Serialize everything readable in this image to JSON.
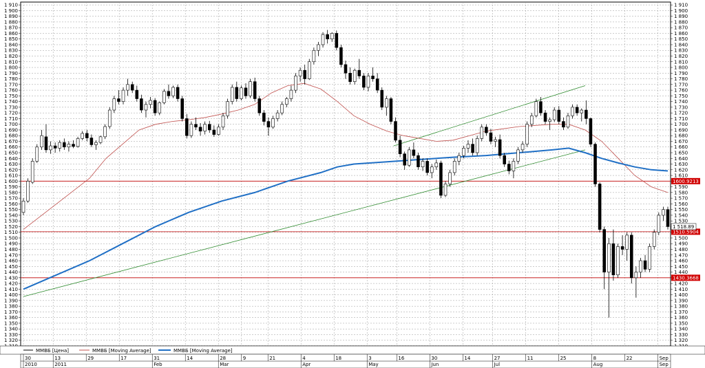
{
  "chart_data": {
    "type": "candlestick",
    "y_range": [
      1310,
      1915
    ],
    "y_ticks": [
      1310,
      1320,
      1330,
      1340,
      1350,
      1360,
      1370,
      1380,
      1390,
      1400,
      1410,
      1420,
      1430,
      1440,
      1450,
      1460,
      1470,
      1480,
      1490,
      1500,
      1510,
      1520,
      1530,
      1540,
      1550,
      1560,
      1570,
      1580,
      1590,
      1600,
      1610,
      1620,
      1630,
      1640,
      1650,
      1660,
      1670,
      1680,
      1690,
      1700,
      1710,
      1720,
      1730,
      1740,
      1750,
      1760,
      1770,
      1780,
      1790,
      1800,
      1810,
      1820,
      1830,
      1840,
      1850,
      1860,
      1870,
      1880,
      1890,
      1900,
      1910
    ],
    "y_tick_labels": [
      "1 310",
      "1 320",
      "1 330",
      "1 340",
      "1 350",
      "1 360",
      "1 370",
      "1 380",
      "1 390",
      "1 400",
      "1 410",
      "1 420",
      "1 430",
      "1 440",
      "1 450",
      "1 460",
      "1 470",
      "1 480",
      "1 490",
      "1 500",
      "1 510",
      "1 520",
      "1 530",
      "1 540",
      "1 550",
      "1 560",
      "1 570",
      "1 580",
      "1 590",
      "1 600",
      "1 610",
      "1 620",
      "1 630",
      "1 640",
      "1 650",
      "1 660",
      "1 670",
      "1 680",
      "1 690",
      "1 700",
      "1 710",
      "1 720",
      "1 730",
      "1 740",
      "1 750",
      "1 760",
      "1 770",
      "1 780",
      "1 790",
      "1 800",
      "1 810",
      "1 820",
      "1 830",
      "1 840",
      "1 850",
      "1 860",
      "1 870",
      "1 880",
      "1 890",
      "1 900",
      "1 910"
    ],
    "x_ticks": [
      {
        "label": "30",
        "x": 0
      },
      {
        "label": "13",
        "x": 9
      },
      {
        "label": "29",
        "x": 19
      },
      {
        "label": "17",
        "x": 29
      },
      {
        "label": "31",
        "x": 39
      },
      {
        "label": "14",
        "x": 49
      },
      {
        "label": "28",
        "x": 59
      },
      {
        "label": "9",
        "x": 66
      },
      {
        "label": "21",
        "x": 74
      },
      {
        "label": "4",
        "x": 84
      },
      {
        "label": "18",
        "x": 94
      },
      {
        "label": "3",
        "x": 104
      },
      {
        "label": "16",
        "x": 113
      },
      {
        "label": "30",
        "x": 123
      },
      {
        "label": "14",
        "x": 133
      },
      {
        "label": "27",
        "x": 142
      },
      {
        "label": "11",
        "x": 152
      },
      {
        "label": "25",
        "x": 162
      },
      {
        "label": "8",
        "x": 172
      },
      {
        "label": "22",
        "x": 182
      },
      {
        "label": "Sep",
        "x": 192
      }
    ],
    "month_labels": [
      {
        "label": "2010",
        "x": 0
      },
      {
        "label": "2011",
        "x": 9
      },
      {
        "label": "Feb",
        "x": 39
      },
      {
        "label": "Mar",
        "x": 59
      },
      {
        "label": "Apr",
        "x": 84
      },
      {
        "label": "May",
        "x": 104
      },
      {
        "label": "Jun",
        "x": 123
      },
      {
        "label": "Jul",
        "x": 142
      },
      {
        "label": "Aug",
        "x": 172
      },
      {
        "label": "Sep",
        "x": 192
      }
    ],
    "x_range": [
      0,
      195
    ],
    "candles_ohlc": [
      [
        1545,
        1570,
        1540,
        1565
      ],
      [
        1565,
        1605,
        1562,
        1600
      ],
      [
        1598,
        1640,
        1595,
        1635
      ],
      [
        1635,
        1665,
        1632,
        1660
      ],
      [
        1660,
        1690,
        1655,
        1680
      ],
      [
        1678,
        1700,
        1650,
        1655
      ],
      [
        1655,
        1670,
        1648,
        1662
      ],
      [
        1662,
        1668,
        1650,
        1658
      ],
      [
        1658,
        1672,
        1652,
        1668
      ],
      [
        1668,
        1675,
        1655,
        1660
      ],
      [
        1660,
        1670,
        1652,
        1665
      ],
      [
        1665,
        1672,
        1658,
        1661
      ],
      [
        1661,
        1678,
        1659,
        1675
      ],
      [
        1675,
        1688,
        1672,
        1684
      ],
      [
        1684,
        1690,
        1670,
        1676
      ],
      [
        1676,
        1682,
        1660,
        1664
      ],
      [
        1664,
        1672,
        1655,
        1668
      ],
      [
        1668,
        1680,
        1665,
        1678
      ],
      [
        1678,
        1700,
        1674,
        1696
      ],
      [
        1696,
        1730,
        1692,
        1725
      ],
      [
        1725,
        1750,
        1720,
        1745
      ],
      [
        1745,
        1760,
        1735,
        1740
      ],
      [
        1740,
        1765,
        1735,
        1760
      ],
      [
        1760,
        1780,
        1750,
        1770
      ],
      [
        1770,
        1775,
        1755,
        1760
      ],
      [
        1760,
        1768,
        1740,
        1745
      ],
      [
        1745,
        1752,
        1720,
        1725
      ],
      [
        1725,
        1740,
        1712,
        1735
      ],
      [
        1735,
        1748,
        1728,
        1742
      ],
      [
        1742,
        1746,
        1715,
        1720
      ],
      [
        1720,
        1740,
        1716,
        1738
      ],
      [
        1738,
        1762,
        1735,
        1758
      ],
      [
        1758,
        1770,
        1745,
        1750
      ],
      [
        1750,
        1768,
        1746,
        1765
      ],
      [
        1765,
        1770,
        1740,
        1745
      ],
      [
        1745,
        1750,
        1705,
        1710
      ],
      [
        1710,
        1718,
        1675,
        1680
      ],
      [
        1680,
        1705,
        1676,
        1700
      ],
      [
        1700,
        1712,
        1690,
        1695
      ],
      [
        1695,
        1702,
        1680,
        1688
      ],
      [
        1688,
        1705,
        1682,
        1700
      ],
      [
        1700,
        1706,
        1685,
        1690
      ],
      [
        1690,
        1698,
        1678,
        1682
      ],
      [
        1682,
        1700,
        1680,
        1695
      ],
      [
        1695,
        1720,
        1690,
        1715
      ],
      [
        1715,
        1745,
        1710,
        1740
      ],
      [
        1740,
        1770,
        1735,
        1765
      ],
      [
        1765,
        1775,
        1740,
        1745
      ],
      [
        1745,
        1768,
        1742,
        1764
      ],
      [
        1764,
        1772,
        1745,
        1750
      ],
      [
        1750,
        1780,
        1746,
        1775
      ],
      [
        1775,
        1782,
        1740,
        1745
      ],
      [
        1745,
        1750,
        1715,
        1720
      ],
      [
        1720,
        1725,
        1698,
        1705
      ],
      [
        1705,
        1712,
        1680,
        1695
      ],
      [
        1695,
        1715,
        1692,
        1710
      ],
      [
        1710,
        1725,
        1705,
        1720
      ],
      [
        1720,
        1740,
        1716,
        1735
      ],
      [
        1735,
        1748,
        1730,
        1745
      ],
      [
        1745,
        1768,
        1740,
        1760
      ],
      [
        1760,
        1790,
        1755,
        1785
      ],
      [
        1785,
        1800,
        1775,
        1795
      ],
      [
        1795,
        1805,
        1770,
        1780
      ],
      [
        1780,
        1815,
        1778,
        1810
      ],
      [
        1810,
        1835,
        1805,
        1830
      ],
      [
        1830,
        1845,
        1820,
        1840
      ],
      [
        1840,
        1862,
        1835,
        1858
      ],
      [
        1858,
        1866,
        1842,
        1850
      ],
      [
        1850,
        1862,
        1845,
        1860
      ],
      [
        1860,
        1865,
        1830,
        1835
      ],
      [
        1835,
        1840,
        1800,
        1805
      ],
      [
        1805,
        1812,
        1780,
        1790
      ],
      [
        1790,
        1800,
        1770,
        1775
      ],
      [
        1775,
        1798,
        1770,
        1795
      ],
      [
        1795,
        1815,
        1780,
        1785
      ],
      [
        1785,
        1790,
        1760,
        1765
      ],
      [
        1765,
        1790,
        1758,
        1785
      ],
      [
        1785,
        1800,
        1775,
        1780
      ],
      [
        1780,
        1790,
        1755,
        1760
      ],
      [
        1760,
        1765,
        1725,
        1730
      ],
      [
        1730,
        1750,
        1715,
        1745
      ],
      [
        1745,
        1748,
        1700,
        1705
      ],
      [
        1705,
        1712,
        1668,
        1672
      ],
      [
        1672,
        1680,
        1642,
        1648
      ],
      [
        1648,
        1652,
        1620,
        1628
      ],
      [
        1628,
        1660,
        1625,
        1655
      ],
      [
        1655,
        1668,
        1640,
        1645
      ],
      [
        1645,
        1650,
        1620,
        1625
      ],
      [
        1625,
        1640,
        1618,
        1635
      ],
      [
        1635,
        1640,
        1610,
        1615
      ],
      [
        1615,
        1630,
        1605,
        1625
      ],
      [
        1625,
        1638,
        1620,
        1632
      ],
      [
        1632,
        1636,
        1570,
        1575
      ],
      [
        1575,
        1600,
        1572,
        1595
      ],
      [
        1595,
        1620,
        1590,
        1615
      ],
      [
        1615,
        1640,
        1610,
        1635
      ],
      [
        1635,
        1650,
        1628,
        1645
      ],
      [
        1645,
        1662,
        1640,
        1658
      ],
      [
        1658,
        1672,
        1650,
        1665
      ],
      [
        1665,
        1675,
        1645,
        1650
      ],
      [
        1650,
        1680,
        1645,
        1675
      ],
      [
        1675,
        1700,
        1670,
        1695
      ],
      [
        1695,
        1700,
        1680,
        1685
      ],
      [
        1685,
        1692,
        1665,
        1670
      ],
      [
        1670,
        1678,
        1660,
        1673
      ],
      [
        1673,
        1682,
        1640,
        1645
      ],
      [
        1645,
        1650,
        1625,
        1630
      ],
      [
        1630,
        1636,
        1612,
        1618
      ],
      [
        1618,
        1640,
        1605,
        1635
      ],
      [
        1635,
        1660,
        1630,
        1655
      ],
      [
        1655,
        1670,
        1650,
        1665
      ],
      [
        1665,
        1705,
        1660,
        1700
      ],
      [
        1700,
        1720,
        1695,
        1715
      ],
      [
        1715,
        1745,
        1712,
        1740
      ],
      [
        1740,
        1748,
        1715,
        1720
      ],
      [
        1720,
        1725,
        1700,
        1705
      ],
      [
        1705,
        1712,
        1690,
        1708
      ],
      [
        1708,
        1730,
        1704,
        1725
      ],
      [
        1725,
        1732,
        1700,
        1705
      ],
      [
        1705,
        1712,
        1690,
        1695
      ],
      [
        1695,
        1720,
        1692,
        1715
      ],
      [
        1715,
        1735,
        1710,
        1730
      ],
      [
        1730,
        1735,
        1715,
        1720
      ],
      [
        1720,
        1728,
        1705,
        1725
      ],
      [
        1725,
        1742,
        1700,
        1710
      ],
      [
        1710,
        1712,
        1660,
        1665
      ],
      [
        1665,
        1668,
        1590,
        1595
      ],
      [
        1595,
        1598,
        1510,
        1515
      ],
      [
        1515,
        1520,
        1410,
        1440
      ],
      [
        1440,
        1500,
        1360,
        1490
      ],
      [
        1490,
        1515,
        1425,
        1435
      ],
      [
        1435,
        1490,
        1430,
        1485
      ],
      [
        1485,
        1505,
        1470,
        1480
      ],
      [
        1480,
        1510,
        1460,
        1505
      ],
      [
        1505,
        1510,
        1420,
        1430
      ],
      [
        1430,
        1450,
        1395,
        1440
      ],
      [
        1440,
        1465,
        1430,
        1460
      ],
      [
        1460,
        1470,
        1440,
        1445
      ],
      [
        1445,
        1490,
        1440,
        1485
      ],
      [
        1485,
        1515,
        1480,
        1510
      ],
      [
        1510,
        1545,
        1505,
        1540
      ],
      [
        1540,
        1555,
        1530,
        1550
      ],
      [
        1550,
        1555,
        1515,
        1520
      ]
    ],
    "series": [
      {
        "name": "ММВБ [Цена]",
        "color": "#000000"
      },
      {
        "name": "ММВБ [Moving Average]",
        "color": "#c0504d"
      },
      {
        "name": "ММВБ [Moving Average]",
        "color": "#1f6fc5"
      }
    ],
    "ma_short": [
      [
        0,
        1515
      ],
      [
        10,
        1560
      ],
      [
        20,
        1605
      ],
      [
        25,
        1640
      ],
      [
        30,
        1665
      ],
      [
        35,
        1690
      ],
      [
        40,
        1700
      ],
      [
        45,
        1705
      ],
      [
        50,
        1708
      ],
      [
        55,
        1712
      ],
      [
        60,
        1718
      ],
      [
        65,
        1725
      ],
      [
        70,
        1735
      ],
      [
        75,
        1755
      ],
      [
        80,
        1768
      ],
      [
        85,
        1772
      ],
      [
        90,
        1762
      ],
      [
        95,
        1740
      ],
      [
        100,
        1715
      ],
      [
        105,
        1700
      ],
      [
        110,
        1688
      ],
      [
        115,
        1680
      ],
      [
        120,
        1675
      ],
      [
        125,
        1670
      ],
      [
        130,
        1672
      ],
      [
        135,
        1680
      ],
      [
        140,
        1688
      ],
      [
        145,
        1692
      ],
      [
        150,
        1696
      ],
      [
        155,
        1698
      ],
      [
        160,
        1700
      ],
      [
        165,
        1700
      ],
      [
        170,
        1690
      ],
      [
        175,
        1670
      ],
      [
        180,
        1640
      ],
      [
        185,
        1610
      ],
      [
        190,
        1590
      ],
      [
        195,
        1580
      ]
    ],
    "ma_long": [
      [
        0,
        1410
      ],
      [
        10,
        1435
      ],
      [
        20,
        1460
      ],
      [
        30,
        1490
      ],
      [
        40,
        1520
      ],
      [
        50,
        1545
      ],
      [
        60,
        1565
      ],
      [
        70,
        1580
      ],
      [
        80,
        1600
      ],
      [
        90,
        1615
      ],
      [
        95,
        1625
      ],
      [
        100,
        1630
      ],
      [
        110,
        1634
      ],
      [
        120,
        1638
      ],
      [
        130,
        1642
      ],
      [
        140,
        1645
      ],
      [
        150,
        1650
      ],
      [
        160,
        1655
      ],
      [
        165,
        1658
      ],
      [
        170,
        1650
      ],
      [
        175,
        1640
      ],
      [
        180,
        1632
      ],
      [
        185,
        1625
      ],
      [
        190,
        1620
      ],
      [
        195,
        1618
      ]
    ],
    "trend_lines": [
      {
        "points": [
          [
            0,
            1397
          ],
          [
            170,
            1655
          ]
        ],
        "color": "#2e8b2e"
      },
      {
        "points": [
          [
            112,
            1662
          ],
          [
            170,
            1768
          ]
        ],
        "color": "#2e8b2e"
      }
    ],
    "h_lines": [
      {
        "value": 1600,
        "tag": "1600.9213"
      },
      {
        "value": 1511,
        "tag": "1510.5904"
      },
      {
        "value": 1430,
        "tag": "1430.3668"
      }
    ],
    "last_value_label": "1 518.89"
  },
  "legend": {
    "item_price": "ММВБ [Цена]",
    "item_ma1": "ММВБ [Moving Average]",
    "item_ma2": "ММВБ [Moving Average]"
  }
}
